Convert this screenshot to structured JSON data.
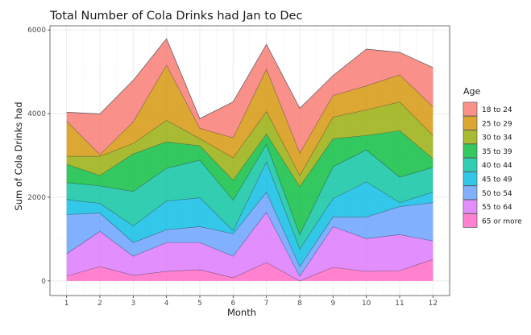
{
  "chart_data": {
    "type": "area",
    "stacked": true,
    "title": "Total Number of Cola Drinks had Jan to Dec",
    "xlabel": "Month",
    "ylabel": "Sum of Cola Drinks had",
    "x": [
      1,
      2,
      3,
      4,
      5,
      6,
      7,
      8,
      9,
      10,
      11,
      12
    ],
    "x_tick_labels": [
      "1",
      "2",
      "3",
      "4",
      "5",
      "6",
      "7",
      "8",
      "9",
      "10",
      "11",
      "12"
    ],
    "y_ticks": [
      0,
      2000,
      4000,
      6000
    ],
    "y_tick_labels": [
      "0",
      "2000",
      "4000",
      "6000"
    ],
    "ylim": [
      -350,
      6100
    ],
    "xlim": [
      0.5,
      12.5
    ],
    "grid": true,
    "legend_title": "Age",
    "legend_position": "right",
    "series": [
      {
        "name": "18 to 24",
        "color": "#F8766D",
        "values": [
          210,
          975,
          994,
          630,
          229,
          860,
          592,
          1070,
          478,
          879,
          535,
          936
        ]
      },
      {
        "name": "25 to 29",
        "color": "#D39200",
        "values": [
          841,
          38,
          516,
          1319,
          249,
          478,
          1013,
          536,
          516,
          574,
          649,
          688
        ]
      },
      {
        "name": "30 to 34",
        "color": "#93AA00",
        "values": [
          191,
          459,
          249,
          516,
          171,
          535,
          535,
          267,
          516,
          611,
          688,
          554
        ]
      },
      {
        "name": "35 to 39",
        "color": "#00BA38",
        "values": [
          440,
          248,
          898,
          631,
          344,
          478,
          248,
          1147,
          668,
          344,
          1109,
          210
        ]
      },
      {
        "name": "40 to 44",
        "color": "#00C19F",
        "values": [
          401,
          420,
          821,
          783,
          899,
          726,
          421,
          344,
          765,
          764,
          611,
          593
        ]
      },
      {
        "name": "45 to 49",
        "color": "#00B9E3",
        "values": [
          363,
          230,
          402,
          688,
          688,
          77,
          726,
          420,
          439,
          841,
          96,
          248
        ]
      },
      {
        "name": "50 to 54",
        "color": "#619CFF",
        "values": [
          936,
          439,
          325,
          306,
          382,
          535,
          478,
          229,
          230,
          516,
          669,
          917
        ]
      },
      {
        "name": "55 to 64",
        "color": "#DB72FB",
        "values": [
          535,
          841,
          458,
          688,
          649,
          516,
          1203,
          115,
          974,
          784,
          860,
          440
        ]
      },
      {
        "name": "65 or more",
        "color": "#FF61C3",
        "values": [
          115,
          344,
          134,
          229,
          268,
          76,
          440,
          0,
          325,
          229,
          248,
          516
        ]
      }
    ]
  }
}
